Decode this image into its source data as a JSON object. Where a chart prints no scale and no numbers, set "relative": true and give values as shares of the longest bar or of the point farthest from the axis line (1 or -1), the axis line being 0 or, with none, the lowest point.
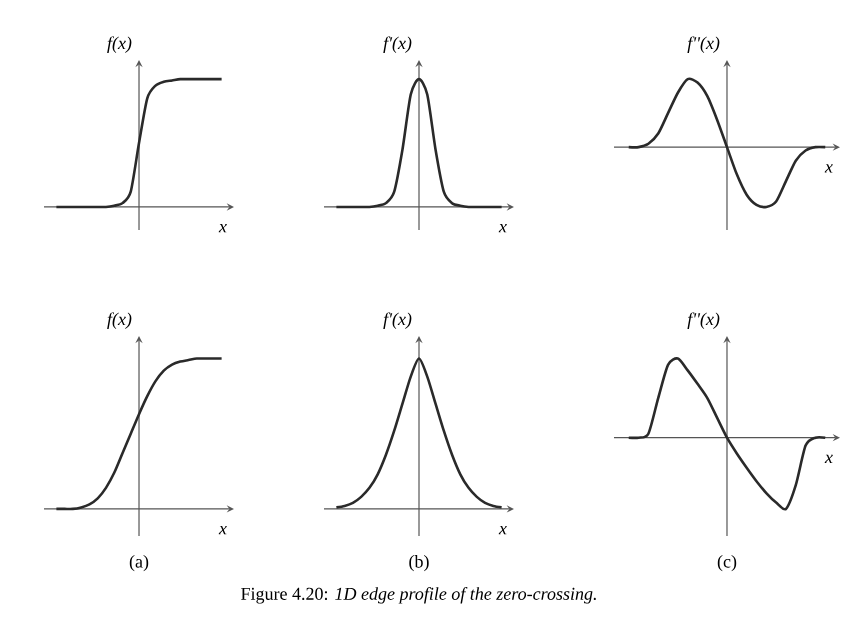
{
  "chart_data": [
    {
      "type": "line",
      "relative": true,
      "ylabel": "f(x)",
      "xlabel": "x",
      "color": "#2a2a2a",
      "categories": [
        null,
        null,
        null,
        null,
        null,
        null,
        null,
        null,
        null,
        null,
        null,
        null,
        null,
        null,
        null,
        null,
        null,
        null,
        null,
        null,
        null
      ],
      "values": [
        0,
        0,
        0,
        0,
        0,
        0,
        0,
        0.01,
        0.03,
        0.12,
        0.5,
        0.85,
        0.95,
        0.98,
        0.99,
        1,
        1,
        1,
        1,
        1,
        1
      ]
    },
    {
      "type": "line",
      "relative": true,
      "ylabel": "f'(x)",
      "xlabel": "x",
      "color": "#2a2a2a",
      "categories": [
        null,
        null,
        null,
        null,
        null,
        null,
        null,
        null,
        null,
        null,
        null,
        null,
        null,
        null,
        null,
        null,
        null,
        null,
        null,
        null,
        null
      ],
      "values": [
        0,
        0,
        0,
        0,
        0,
        0.01,
        0.03,
        0.12,
        0.45,
        0.88,
        1,
        0.88,
        0.45,
        0.12,
        0.03,
        0.01,
        0,
        0,
        0,
        0,
        0
      ]
    },
    {
      "type": "line",
      "relative": true,
      "ylabel": "f''(x)",
      "xlabel": "x",
      "color": "#2a2a2a",
      "categories": [
        null,
        null,
        null,
        null,
        null,
        null,
        null,
        null,
        null,
        null,
        null,
        null,
        null,
        null,
        null,
        null,
        null,
        null,
        null,
        null,
        null
      ],
      "values": [
        0,
        0,
        0.05,
        0.2,
        0.5,
        0.8,
        1,
        0.95,
        0.75,
        0.4,
        0,
        -0.4,
        -0.7,
        -0.85,
        -0.88,
        -0.8,
        -0.5,
        -0.2,
        -0.05,
        0,
        0
      ]
    },
    {
      "type": "line",
      "relative": true,
      "ylabel": "f(x)",
      "xlabel": "x",
      "color": "#2a2a2a",
      "annotations": [
        "(a)"
      ],
      "categories": [
        null,
        null,
        null,
        null,
        null,
        null,
        null,
        null,
        null,
        null,
        null,
        null,
        null,
        null,
        null,
        null,
        null,
        null,
        null,
        null,
        null
      ],
      "values": [
        0,
        0,
        0,
        0.01,
        0.03,
        0.07,
        0.14,
        0.24,
        0.37,
        0.5,
        0.63,
        0.75,
        0.85,
        0.92,
        0.96,
        0.98,
        0.99,
        1,
        1,
        1,
        1
      ]
    },
    {
      "type": "line",
      "relative": true,
      "ylabel": "f'(x)",
      "xlabel": "x",
      "color": "#2a2a2a",
      "annotations": [
        "(b)",
        "Figure 4.20: *1D edge profile of the zero-crossing.*"
      ],
      "categories": [
        null,
        null,
        null,
        null,
        null,
        null,
        null,
        null,
        null,
        null,
        null,
        null,
        null,
        null,
        null,
        null,
        null,
        null,
        null,
        null,
        null
      ],
      "values": [
        0.01,
        0.02,
        0.04,
        0.08,
        0.14,
        0.23,
        0.36,
        0.52,
        0.7,
        0.88,
        1,
        0.88,
        0.7,
        0.52,
        0.36,
        0.23,
        0.14,
        0.08,
        0.04,
        0.02,
        0.01
      ]
    },
    {
      "type": "line",
      "relative": true,
      "ylabel": "f''(x)",
      "xlabel": "x",
      "color": "#2a2a2a",
      "annotations": [
        "(c)"
      ],
      "categories": [
        null,
        null,
        null,
        null,
        null,
        null,
        null,
        null,
        null,
        null,
        null,
        null,
        null,
        null,
        null,
        null,
        null,
        null,
        null,
        null,
        null
      ],
      "values": [
        0,
        0,
        0.05,
        0.5,
        0.92,
        1,
        0.85,
        0.68,
        0.5,
        0.25,
        0,
        -0.2,
        -0.38,
        -0.55,
        -0.7,
        -0.82,
        -0.9,
        -0.6,
        -0.1,
        0,
        0
      ]
    }
  ]
}
